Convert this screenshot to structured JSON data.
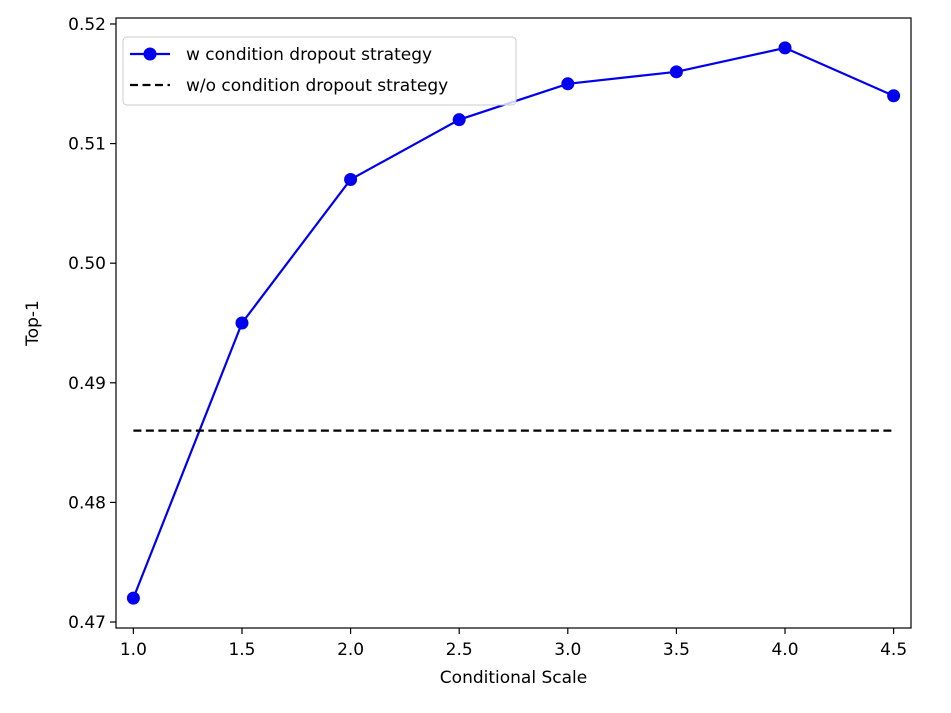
{
  "chart_data": {
    "type": "line",
    "xlabel": "Conditional Scale",
    "ylabel": "Top-1",
    "xlim": [
      0.92,
      4.58
    ],
    "ylim": [
      0.4695,
      0.5205
    ],
    "x_ticks": [
      1.0,
      1.5,
      2.0,
      2.5,
      3.0,
      3.5,
      4.0,
      4.5
    ],
    "x_tick_labels": [
      "1.0",
      "1.5",
      "2.0",
      "2.5",
      "3.0",
      "3.5",
      "4.0",
      "4.5"
    ],
    "y_ticks": [
      0.47,
      0.48,
      0.49,
      0.5,
      0.51,
      0.52
    ],
    "y_tick_labels": [
      "0.47",
      "0.48",
      "0.49",
      "0.50",
      "0.51",
      "0.52"
    ],
    "grid": false,
    "legend_position": "top-left",
    "series": [
      {
        "name": "w condition dropout strategy",
        "style": "solid-with-markers",
        "color": "#0000ee",
        "x": [
          1.0,
          1.5,
          2.0,
          2.5,
          3.0,
          3.5,
          4.0,
          4.5
        ],
        "y": [
          0.472,
          0.495,
          0.507,
          0.512,
          0.515,
          0.516,
          0.518,
          0.514
        ]
      },
      {
        "name": "w/o condition dropout strategy",
        "style": "dashed",
        "color": "#000000",
        "x": [
          1.0,
          4.5
        ],
        "y": [
          0.486,
          0.486
        ]
      }
    ]
  }
}
